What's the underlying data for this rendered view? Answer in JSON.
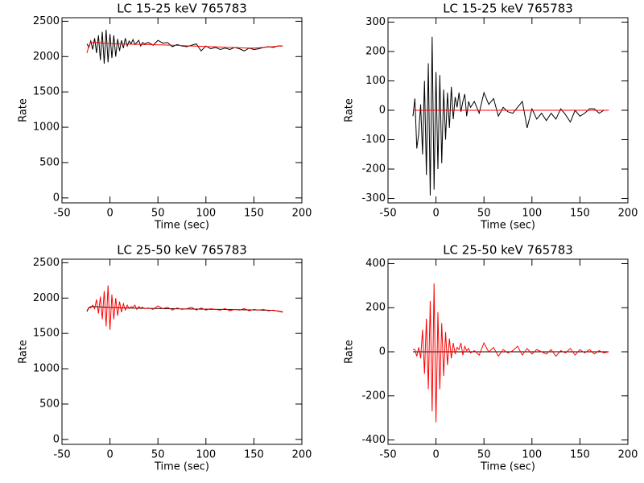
{
  "chart_data": [
    {
      "type": "line",
      "title": "LC 15-25 keV  765783",
      "xlabel": "Time (sec)",
      "ylabel": "Rate",
      "xlim": [
        -50,
        200
      ],
      "ylim": [
        -70,
        2550
      ],
      "xticks": [
        -50,
        0,
        50,
        100,
        150,
        200
      ],
      "yticks": [
        0,
        500,
        1000,
        1500,
        2000,
        2500
      ],
      "x": [
        -24,
        -22,
        -20,
        -18,
        -16,
        -14,
        -12,
        -10,
        -8,
        -6,
        -4,
        -2,
        0,
        2,
        4,
        6,
        8,
        10,
        12,
        14,
        16,
        18,
        20,
        22,
        24,
        26,
        28,
        30,
        32,
        34,
        36,
        40,
        45,
        50,
        55,
        60,
        65,
        70,
        75,
        80,
        85,
        90,
        95,
        100,
        105,
        110,
        115,
        120,
        125,
        130,
        135,
        140,
        145,
        150,
        155,
        160,
        165,
        170,
        175,
        180
      ],
      "series": [
        {
          "color": "#000000",
          "values": [
            2180,
            2130,
            2220,
            2100,
            2260,
            2050,
            2300,
            1950,
            2350,
            1900,
            2380,
            1920,
            2320,
            1980,
            2300,
            2000,
            2250,
            2080,
            2230,
            2120,
            2260,
            2150,
            2220,
            2180,
            2240,
            2170,
            2200,
            2230,
            2150,
            2200,
            2180,
            2200,
            2160,
            2230,
            2190,
            2200,
            2140,
            2170,
            2150,
            2140,
            2160,
            2180,
            2080,
            2150,
            2110,
            2130,
            2100,
            2120,
            2100,
            2130,
            2110,
            2080,
            2120,
            2100,
            2110,
            2130,
            2140,
            2130,
            2150,
            2150
          ]
        },
        {
          "color": "#ff0000",
          "values": [
            2050,
            2150,
            2200,
            2200,
            2200,
            2200,
            2195,
            2195,
            2190,
            2190,
            2190,
            2185,
            2185,
            2185,
            2180,
            2180,
            2180,
            2180,
            2178,
            2178,
            2176,
            2176,
            2175,
            2175,
            2174,
            2173,
            2172,
            2172,
            2171,
            2170,
            2170,
            2170,
            2168,
            2166,
            2165,
            2163,
            2160,
            2158,
            2155,
            2152,
            2150,
            2148,
            2145,
            2142,
            2140,
            2138,
            2135,
            2132,
            2130,
            2128,
            2125,
            2122,
            2120,
            2120,
            2125,
            2130,
            2135,
            2140,
            2148,
            2150
          ]
        }
      ]
    },
    {
      "type": "line",
      "title": "LC 15-25 keV  765783",
      "xlabel": "Time (sec)",
      "ylabel": "Rate",
      "xlim": [
        -50,
        200
      ],
      "ylim": [
        -315,
        315
      ],
      "xticks": [
        -50,
        0,
        50,
        100,
        150,
        200
      ],
      "yticks": [
        -300,
        -200,
        -100,
        0,
        100,
        200,
        300
      ],
      "x": [
        -24,
        -22,
        -20,
        -18,
        -16,
        -14,
        -12,
        -10,
        -8,
        -6,
        -4,
        -2,
        0,
        2,
        4,
        6,
        8,
        10,
        12,
        14,
        16,
        18,
        20,
        22,
        24,
        26,
        28,
        30,
        32,
        34,
        36,
        40,
        45,
        50,
        55,
        60,
        65,
        70,
        75,
        80,
        85,
        90,
        95,
        100,
        105,
        110,
        115,
        120,
        125,
        130,
        135,
        140,
        145,
        150,
        155,
        160,
        165,
        170,
        175,
        180
      ],
      "series": [
        {
          "color": "#000000",
          "values": [
            -20,
            40,
            -130,
            -80,
            20,
            -150,
            100,
            -220,
            160,
            -290,
            250,
            -270,
            130,
            -200,
            120,
            -180,
            70,
            -100,
            60,
            -60,
            80,
            -30,
            45,
            10,
            60,
            -5,
            30,
            55,
            -20,
            30,
            10,
            30,
            -10,
            60,
            20,
            40,
            -20,
            10,
            -5,
            -10,
            10,
            30,
            -60,
            5,
            -30,
            -10,
            -35,
            -10,
            -30,
            5,
            -15,
            -40,
            0,
            -20,
            -10,
            5,
            5,
            -10,
            0,
            0
          ]
        },
        {
          "color": "#ff0000",
          "values": [
            0,
            0,
            0,
            0,
            0,
            0,
            0,
            0,
            0,
            0,
            0,
            0,
            0,
            0,
            0,
            0,
            0,
            0,
            0,
            0,
            0,
            0,
            0,
            0,
            0,
            0,
            0,
            0,
            0,
            0,
            0,
            0,
            0,
            0,
            0,
            0,
            0,
            0,
            0,
            0,
            0,
            0,
            0,
            0,
            0,
            0,
            0,
            0,
            0,
            0,
            0,
            0,
            0,
            0,
            0,
            0,
            0,
            0,
            0,
            0
          ]
        }
      ]
    },
    {
      "type": "line",
      "title": "LC 25-50 keV  765783",
      "xlabel": "Time (sec)",
      "ylabel": "Rate",
      "xlim": [
        -50,
        200
      ],
      "ylim": [
        -70,
        2550
      ],
      "xticks": [
        -50,
        0,
        50,
        100,
        150,
        200
      ],
      "yticks": [
        0,
        500,
        1000,
        1500,
        2000,
        2500
      ],
      "x": [
        -24,
        -22,
        -20,
        -18,
        -16,
        -14,
        -12,
        -10,
        -8,
        -6,
        -4,
        -2,
        0,
        2,
        4,
        6,
        8,
        10,
        12,
        14,
        16,
        18,
        20,
        22,
        24,
        26,
        28,
        30,
        32,
        34,
        36,
        40,
        45,
        50,
        55,
        60,
        65,
        70,
        75,
        80,
        85,
        90,
        95,
        100,
        105,
        110,
        115,
        120,
        125,
        130,
        135,
        140,
        145,
        150,
        155,
        160,
        165,
        170,
        175,
        180
      ],
      "series": [
        {
          "color": "#000000",
          "values": [
            1810,
            1860,
            1880,
            1880,
            1880,
            1878,
            1876,
            1875,
            1874,
            1872,
            1870,
            1870,
            1868,
            1868,
            1866,
            1866,
            1864,
            1864,
            1862,
            1862,
            1860,
            1860,
            1860,
            1858,
            1858,
            1857,
            1856,
            1856,
            1855,
            1855,
            1855,
            1854,
            1853,
            1852,
            1851,
            1850,
            1849,
            1848,
            1847,
            1846,
            1845,
            1844,
            1843,
            1842,
            1841,
            1840,
            1839,
            1838,
            1837,
            1836,
            1835,
            1834,
            1833,
            1832,
            1831,
            1830,
            1828,
            1825,
            1818,
            1805
          ]
        },
        {
          "color": "#ff0000",
          "values": [
            1820,
            1870,
            1860,
            1900,
            1850,
            1980,
            1780,
            2020,
            1700,
            2100,
            1600,
            2180,
            1550,
            2050,
            1700,
            2000,
            1750,
            1950,
            1800,
            1920,
            1830,
            1900,
            1850,
            1880,
            1870,
            1900,
            1840,
            1880,
            1860,
            1870,
            1850,
            1860,
            1840,
            1890,
            1850,
            1870,
            1830,
            1860,
            1840,
            1850,
            1870,
            1830,
            1860,
            1830,
            1850,
            1840,
            1830,
            1850,
            1820,
            1840,
            1830,
            1850,
            1820,
            1840,
            1830,
            1840,
            1820,
            1830,
            1815,
            1800
          ]
        }
      ]
    },
    {
      "type": "line",
      "title": "LC 25-50 keV  765783",
      "xlabel": "Time (sec)",
      "ylabel": "Rate",
      "xlim": [
        -50,
        200
      ],
      "ylim": [
        -420,
        420
      ],
      "xticks": [
        -50,
        0,
        50,
        100,
        150,
        200
      ],
      "yticks": [
        -400,
        -200,
        0,
        200,
        400
      ],
      "x": [
        -24,
        -22,
        -20,
        -18,
        -16,
        -14,
        -12,
        -10,
        -8,
        -6,
        -4,
        -2,
        0,
        2,
        4,
        6,
        8,
        10,
        12,
        14,
        16,
        18,
        20,
        22,
        24,
        26,
        28,
        30,
        32,
        34,
        36,
        40,
        45,
        50,
        55,
        60,
        65,
        70,
        75,
        80,
        85,
        90,
        95,
        100,
        105,
        110,
        115,
        120,
        125,
        130,
        135,
        140,
        145,
        150,
        155,
        160,
        165,
        170,
        175,
        180
      ],
      "series": [
        {
          "color": "#000000",
          "values": [
            0,
            0,
            0,
            0,
            0,
            0,
            0,
            0,
            0,
            0,
            0,
            0,
            0,
            0,
            0,
            0,
            0,
            0,
            0,
            0,
            0,
            0,
            0,
            0,
            0,
            0,
            0,
            0,
            0,
            0,
            0,
            0,
            0,
            0,
            0,
            0,
            0,
            0,
            0,
            0,
            0,
            0,
            0,
            0,
            0,
            0,
            0,
            0,
            0,
            0,
            0,
            0,
            0,
            0,
            0,
            0,
            0,
            0,
            0,
            0
          ]
        },
        {
          "color": "#ff0000",
          "values": [
            10,
            10,
            -20,
            20,
            -30,
            100,
            -100,
            150,
            -170,
            230,
            -270,
            310,
            -320,
            180,
            -170,
            130,
            -110,
            90,
            -60,
            60,
            -30,
            40,
            -10,
            20,
            10,
            40,
            -15,
            25,
            5,
            15,
            -5,
            5,
            -15,
            40,
            -1,
            20,
            -20,
            10,
            -5,
            5,
            25,
            -15,
            15,
            -10,
            10,
            0,
            -10,
            10,
            -20,
            5,
            -5,
            15,
            -15,
            10,
            -5,
            10,
            -10,
            5,
            -5,
            0
          ]
        }
      ]
    }
  ]
}
